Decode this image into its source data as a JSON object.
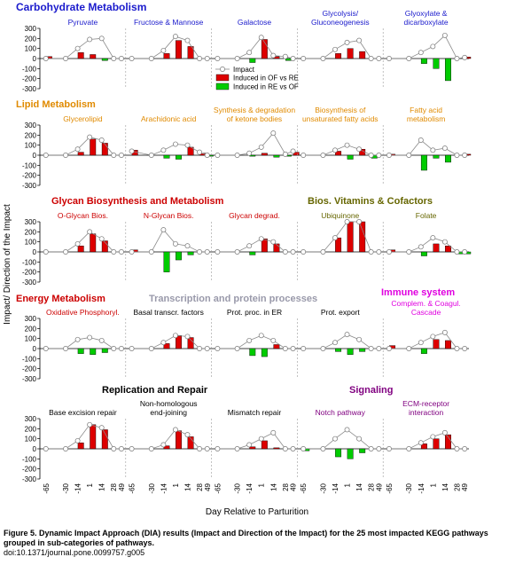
{
  "figure": {
    "ylabel": "Impact/ Direction of the Impact",
    "xlabel": "Day Relative to Parturition",
    "x_tick_labels": [
      "-65",
      "-30",
      "-14",
      "1",
      "14",
      "28",
      "49"
    ],
    "y_tick_labels": [
      "300",
      "200",
      "100",
      "0",
      "-100",
      "-200",
      "-300"
    ],
    "legend": {
      "impact": "Impact",
      "of_vs_re": "Induced in OF vs RE",
      "re_vs_of": "Induced in RE vs OF"
    },
    "caption_title": "Figure 5. Dynamic Impact Approach (DIA) results (Impact and Direction of the Impact) for the 25 most impacted KEGG pathways grouped in sub-categories of pathways.",
    "caption_doi": "doi:10.1371/journal.pone.0099757.g005"
  },
  "colors": {
    "carbohydrate": "#1a1acc",
    "lipid": "#e08a00",
    "glycan": "#cc0000",
    "vitamins": "#666600",
    "energy": "#cc0000",
    "transcription": "#9999aa",
    "immune": "#e000e0",
    "replication": "#000000",
    "signaling": "#800080",
    "bar_red": "#dd0000",
    "bar_green": "#00cc00"
  },
  "categories": [
    {
      "label": "Carbohydrate Metabolism",
      "color": "carbohydrate"
    },
    {
      "label": "Lipid Metabolism",
      "color": "lipid"
    },
    {
      "label": "Glycan Biosynthesis and Metabolism",
      "color": "glycan"
    },
    {
      "label": "Bios. Vitamins & Cofactors",
      "color": "vitamins"
    },
    {
      "label": "Energy Metabolism",
      "color": "energy"
    },
    {
      "label": "Transcription and protein processes",
      "color": "transcription"
    },
    {
      "label": "Immune system",
      "color": "immune"
    },
    {
      "label": "Replication and Repair",
      "color": "replication"
    },
    {
      "label": "Signaling",
      "color": "signaling"
    }
  ],
  "chart_data": {
    "type": "bar",
    "x": [
      "-65",
      "-30",
      "-14",
      "1",
      "14",
      "28",
      "49"
    ],
    "ylim": [
      -300,
      300
    ],
    "y_ticks": [
      300,
      200,
      100,
      0,
      -100,
      -200,
      -300
    ],
    "series_names": [
      "Impact",
      "Induced in OF vs RE",
      "Induced in RE vs OF"
    ],
    "panels": [
      {
        "title": [
          "Pyruvate"
        ],
        "color": "carbohydrate",
        "impact": [
          0,
          0,
          100,
          190,
          200,
          0,
          0
        ],
        "direction": [
          20,
          0,
          60,
          40,
          -20,
          0,
          0
        ]
      },
      {
        "title": [
          "Fructose & Mannose"
        ],
        "color": "carbohydrate",
        "impact": [
          0,
          0,
          80,
          220,
          180,
          0,
          0
        ],
        "direction": [
          0,
          0,
          50,
          180,
          120,
          0,
          0
        ]
      },
      {
        "title": [
          "Galactose"
        ],
        "color": "carbohydrate",
        "impact": [
          0,
          0,
          60,
          210,
          30,
          20,
          0
        ],
        "direction": [
          0,
          0,
          -40,
          190,
          20,
          -20,
          0
        ]
      },
      {
        "title": [
          "Glycolysis/",
          "Gluconeogenesis"
        ],
        "color": "carbohydrate",
        "impact": [
          0,
          0,
          90,
          160,
          180,
          0,
          0
        ],
        "direction": [
          0,
          0,
          50,
          100,
          70,
          0,
          0
        ]
      },
      {
        "title": [
          "Glyoxylate &",
          "dicarboxylate"
        ],
        "color": "carbohydrate",
        "impact": [
          0,
          0,
          60,
          120,
          230,
          0,
          10
        ],
        "direction": [
          0,
          0,
          -50,
          -100,
          -220,
          0,
          15
        ]
      },
      {
        "title": [
          "Glycerolipid"
        ],
        "color": "lipid",
        "impact": [
          0,
          0,
          60,
          180,
          150,
          0,
          0
        ],
        "direction": [
          0,
          0,
          30,
          160,
          120,
          0,
          0
        ]
      },
      {
        "title": [
          "Arachidonic acid"
        ],
        "color": "lipid",
        "impact": [
          40,
          0,
          50,
          110,
          100,
          30,
          0
        ],
        "direction": [
          50,
          0,
          -30,
          -40,
          80,
          20,
          -10
        ]
      },
      {
        "title": [
          "Synthesis & degradation",
          "of ketone bodies"
        ],
        "color": "lipid",
        "impact": [
          0,
          0,
          20,
          80,
          220,
          10,
          40
        ],
        "direction": [
          0,
          0,
          -10,
          20,
          -20,
          -10,
          30
        ]
      },
      {
        "title": [
          "Biosynthesis of",
          "unsaturated fatty acids"
        ],
        "color": "lipid",
        "impact": [
          0,
          0,
          50,
          100,
          60,
          0,
          0
        ],
        "direction": [
          0,
          0,
          40,
          -40,
          60,
          -30,
          0
        ]
      },
      {
        "title": [
          "Fatty acid",
          "metabolism"
        ],
        "color": "lipid",
        "impact": [
          0,
          0,
          150,
          50,
          70,
          0,
          0
        ],
        "direction": [
          10,
          0,
          -150,
          -30,
          -70,
          0,
          10
        ]
      },
      {
        "title": [
          "O-Glycan Bios."
        ],
        "color": "glycan",
        "impact": [
          0,
          0,
          80,
          200,
          130,
          0,
          0
        ],
        "direction": [
          0,
          0,
          60,
          180,
          110,
          0,
          0
        ]
      },
      {
        "title": [
          "N-Glycan Bios."
        ],
        "color": "glycan",
        "impact": [
          0,
          0,
          220,
          80,
          60,
          0,
          0
        ],
        "direction": [
          20,
          0,
          -200,
          -80,
          -30,
          0,
          0
        ]
      },
      {
        "title": [
          "Glycan degrad."
        ],
        "color": "glycan",
        "impact": [
          0,
          0,
          60,
          130,
          100,
          0,
          0
        ],
        "direction": [
          0,
          0,
          -30,
          130,
          80,
          0,
          0
        ]
      },
      {
        "title": [
          "Ubiquinone"
        ],
        "color": "vitamins",
        "impact": [
          0,
          0,
          140,
          300,
          300,
          0,
          0
        ],
        "direction": [
          0,
          0,
          140,
          300,
          300,
          0,
          0
        ]
      },
      {
        "title": [
          "Folate"
        ],
        "color": "vitamins",
        "impact": [
          0,
          0,
          50,
          140,
          100,
          0,
          0
        ],
        "direction": [
          20,
          0,
          -40,
          80,
          60,
          -20,
          -20
        ]
      },
      {
        "title": [
          "Oxidative Phosphoryl."
        ],
        "color": "energy",
        "impact": [
          0,
          0,
          90,
          110,
          80,
          0,
          0
        ],
        "direction": [
          0,
          0,
          -50,
          -60,
          -40,
          0,
          0
        ]
      },
      {
        "title": [
          "Basal transcr. factors"
        ],
        "color": "replication",
        "impact": [
          0,
          0,
          60,
          130,
          120,
          0,
          0
        ],
        "direction": [
          0,
          0,
          50,
          130,
          110,
          0,
          0
        ]
      },
      {
        "title": [
          "Prot. proc. in ER"
        ],
        "color": "replication",
        "impact": [
          0,
          0,
          80,
          130,
          80,
          0,
          0
        ],
        "direction": [
          0,
          0,
          -70,
          -80,
          40,
          0,
          0
        ]
      },
      {
        "title": [
          "Prot. export"
        ],
        "color": "replication",
        "impact": [
          0,
          0,
          60,
          140,
          90,
          0,
          0
        ],
        "direction": [
          0,
          0,
          -30,
          -60,
          -30,
          0,
          0
        ]
      },
      {
        "title": [
          "Complem. & Coagul.",
          "Cascade"
        ],
        "color": "immune",
        "impact": [
          0,
          0,
          60,
          120,
          160,
          0,
          0
        ],
        "direction": [
          30,
          0,
          -50,
          90,
          80,
          0,
          0
        ]
      },
      {
        "title": [
          "Base excision repair"
        ],
        "color": "replication",
        "impact": [
          0,
          0,
          80,
          240,
          210,
          0,
          0
        ],
        "direction": [
          0,
          0,
          60,
          240,
          190,
          0,
          0
        ]
      },
      {
        "title": [
          "Non-homologous",
          "end-joining"
        ],
        "color": "replication",
        "impact": [
          0,
          0,
          40,
          190,
          140,
          0,
          0
        ],
        "direction": [
          0,
          0,
          30,
          180,
          120,
          0,
          0
        ]
      },
      {
        "title": [
          "Mismatch repair"
        ],
        "color": "replication",
        "impact": [
          0,
          0,
          40,
          100,
          160,
          0,
          0
        ],
        "direction": [
          0,
          0,
          20,
          80,
          10,
          0,
          0
        ]
      },
      {
        "title": [
          "Notch pathway"
        ],
        "color": "signaling",
        "impact": [
          0,
          0,
          100,
          190,
          100,
          0,
          0
        ],
        "direction": [
          -20,
          0,
          -80,
          -100,
          -40,
          0,
          0
        ]
      },
      {
        "title": [
          "ECM-receptor",
          "interaction"
        ],
        "color": "signaling",
        "impact": [
          0,
          0,
          60,
          120,
          160,
          0,
          0
        ],
        "direction": [
          0,
          0,
          50,
          100,
          140,
          0,
          0
        ]
      }
    ]
  }
}
